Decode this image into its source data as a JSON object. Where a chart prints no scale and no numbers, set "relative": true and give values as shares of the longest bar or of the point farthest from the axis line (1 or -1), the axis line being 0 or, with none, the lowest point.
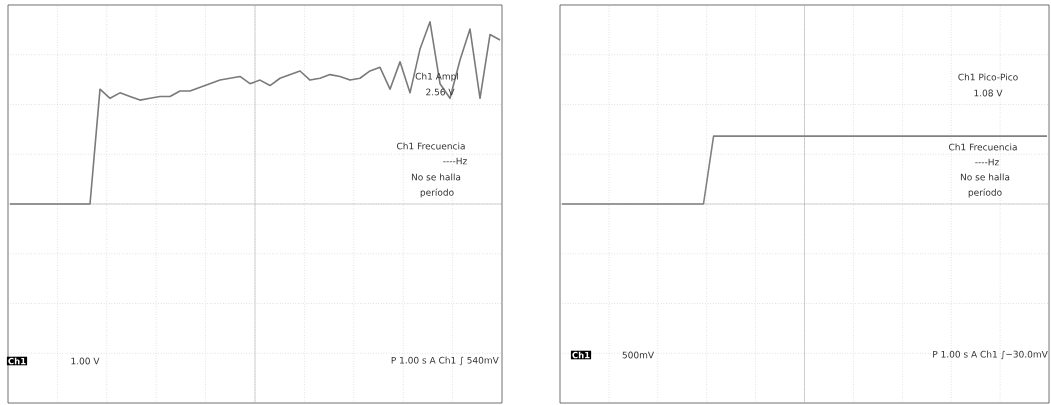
{
  "chart_data": [
    {
      "type": "line",
      "relative": true,
      "color": "#7a7a7a",
      "grid": true,
      "categories": [
        null,
        null,
        null,
        null,
        null,
        null,
        null,
        null,
        null,
        null,
        null,
        null,
        null,
        null,
        null,
        null,
        null,
        null,
        null,
        null,
        null,
        null,
        null,
        null,
        null,
        null,
        null,
        null,
        null,
        null,
        null,
        null,
        null,
        null,
        null,
        null,
        null,
        null,
        null,
        null,
        null,
        null,
        null,
        null,
        null,
        null,
        null,
        null,
        null,
        null
      ],
      "values": [
        0,
        0,
        0,
        0,
        0,
        0,
        0,
        0,
        0,
        0.63,
        0.58,
        0.61,
        0.59,
        0.57,
        0.58,
        0.59,
        0.59,
        0.62,
        0.62,
        0.64,
        0.66,
        0.68,
        0.69,
        0.7,
        0.66,
        0.68,
        0.65,
        0.69,
        0.71,
        0.73,
        0.68,
        0.69,
        0.71,
        0.7,
        0.68,
        0.69,
        0.73,
        0.75,
        0.63,
        0.78,
        0.61,
        0.85,
        1,
        0.66,
        0.58,
        0.79,
        0.96,
        0.58,
        0.93,
        0.9
      ],
      "annotations": [
        "Ch1 Ampl",
        "2.56 V",
        "Ch1 Frecuencia",
        "----Hz",
        "No se halla",
        "período",
        "Ch1",
        "1.00 V",
        "P 1.00 s  A  Ch1  ∫  540mV"
      ]
    },
    {
      "type": "line",
      "relative": true,
      "color": "#808080",
      "grid": true,
      "categories": [
        null,
        null,
        null,
        null,
        null,
        null,
        null,
        null,
        null,
        null,
        null,
        null,
        null,
        null,
        null,
        null,
        null,
        null,
        null,
        null,
        null,
        null,
        null,
        null,
        null,
        null,
        null,
        null,
        null,
        null,
        null,
        null,
        null,
        null,
        null,
        null,
        null,
        null,
        null,
        null,
        null,
        null,
        null,
        null,
        null,
        null,
        null,
        null,
        null
      ],
      "values": [
        0,
        0,
        0,
        0,
        0,
        0,
        0,
        0,
        0,
        0,
        0,
        0,
        0,
        0,
        0,
        1,
        1,
        1,
        1,
        1,
        1,
        1,
        1,
        1,
        1,
        1,
        1,
        1,
        1,
        1,
        1,
        1,
        1,
        1,
        1,
        1,
        1,
        1,
        1,
        1,
        1,
        1,
        1,
        1,
        1,
        1,
        1,
        1,
        1
      ],
      "annotations": [
        "Ch1 Pico-Pico",
        "1.08 V",
        "Ch1 Frecuencia",
        "----Hz",
        "No se halla",
        "período",
        "Ch1",
        "500mV",
        "P 1.00 s  A  Ch1  ∫−30.0mV"
      ]
    }
  ]
}
